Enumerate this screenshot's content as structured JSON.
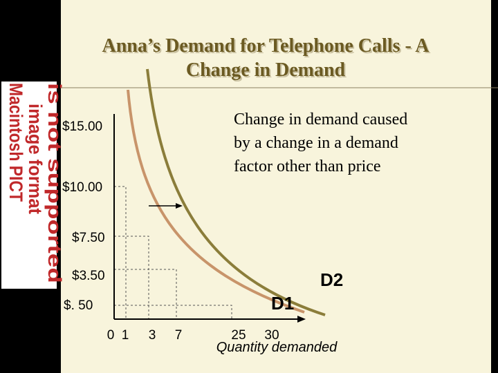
{
  "sidebar": {
    "lines": [
      "Macintosh PICT",
      "image format",
      "is not supported"
    ]
  },
  "title": [
    "Anna’s Demand for Telephone Calls - A",
    "Change in Demand"
  ],
  "annotation": [
    "Change in demand caused",
    "by a change in a demand",
    "factor other than price"
  ],
  "price_labels": [
    "$15.00",
    "$10.00",
    "$7.50",
    "$3.50",
    "$. 50"
  ],
  "quantity_labels": [
    "0",
    "1",
    "3",
    "7",
    "25",
    "30"
  ],
  "axis_label": "Quantity demanded",
  "curve_labels": [
    "D1",
    "D2"
  ]
}
